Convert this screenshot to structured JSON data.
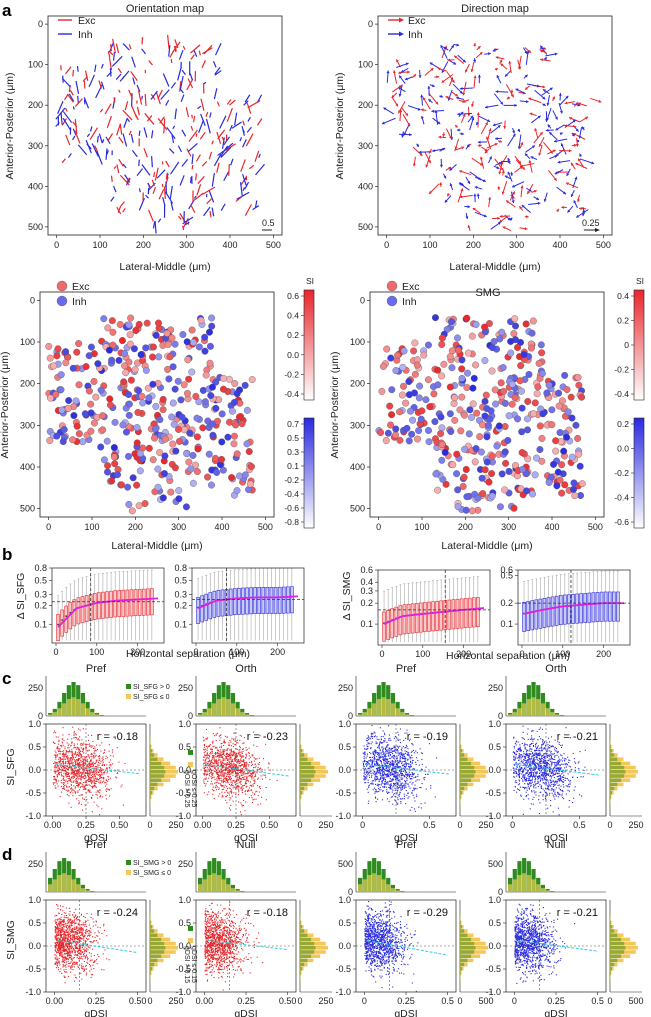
{
  "panel_letters": {
    "a": "a",
    "b": "b",
    "c": "c",
    "d": "d"
  },
  "panel_a": {
    "orientation_title": "Orientation map",
    "direction_title": "Direction map",
    "smg_title": "SMG",
    "legend_exc": "Exc",
    "legend_inh": "Inh",
    "scale_orientation": "0.5",
    "scale_direction": "0.25",
    "xlabel": "Lateral-Middle (μm)",
    "ylabel": "Anterior-Posterior (μm)",
    "x_ticks": [
      "0",
      "100",
      "200",
      "300",
      "400",
      "500"
    ],
    "y_ticks": [
      "0",
      "100",
      "200",
      "300",
      "400",
      "500"
    ],
    "si_label": "SI",
    "cbar_sfg_exc": [
      "0.6",
      "0.4",
      "0.2",
      "0.0",
      "-0.2",
      "-0.4"
    ],
    "cbar_sfg_inh": [
      "0.7",
      "0.5",
      "0.3",
      "0.1",
      "-0.2",
      "-0.4",
      "-0.6",
      "-0.8"
    ],
    "cbar_smg_exc": [
      "0.4",
      "0.2",
      "0",
      "-0.2",
      "-0.4"
    ],
    "cbar_smg_inh": [
      "0.2",
      "0.0",
      "-0.2",
      "-0.4",
      "-0.6"
    ],
    "colors": {
      "exc": "#e8262b",
      "inh": "#2a2adf"
    }
  },
  "panel_b": {
    "ylabel_sfg": "Δ SI_SFG",
    "ylabel_smg": "Δ SI_SMG",
    "xlabel": "Horizontal separation (μm)",
    "x_ticks": [
      "0",
      "100",
      "200"
    ],
    "y_ticks_sfg_exc": [
      "0.8",
      "0.5",
      "0.3",
      "0.2",
      "0.1"
    ],
    "y_ticks_sfg_inh": [
      "0.8",
      "0.5",
      "0.3",
      "0.2",
      "0.1"
    ],
    "y_ticks_smg_exc": [
      "0.6",
      "0.4",
      "0.3",
      "0.2",
      "0.1"
    ],
    "y_ticks_smg_inh": [
      "0.6",
      "0.5",
      "0.2",
      "0.1"
    ]
  },
  "panel_c": {
    "ylabel": "SI_SFG",
    "xlabel": "gOSI",
    "titles": [
      "Pref",
      "Orth",
      "Pref",
      "Orth"
    ],
    "r_values": [
      "r = -0.18",
      "r = -0.23",
      "r = -0.19",
      "r = -0.21"
    ],
    "legend_pos": "SI_SFG > 0",
    "legend_neg": "SI_SFG ≤ 0",
    "side_legend_a": "gOSI ≤ 0.25",
    "side_legend_b": "gOSI > 0.25",
    "x_ticks": [
      "0.00",
      "0.25",
      "0.50"
    ],
    "x_ticks_inh": [
      "0",
      "0.5"
    ],
    "y_ticks": [
      "1.0",
      "0.5",
      "0.0",
      "-0.5",
      "-1.0"
    ],
    "hist_ticks": [
      "0",
      "250"
    ],
    "top_hist_ticks": [
      "250",
      "0"
    ]
  },
  "panel_d": {
    "ylabel": "SI_SMG",
    "xlabel": "gDSI",
    "titles": [
      "Pref",
      "Null",
      "Pref",
      "Null"
    ],
    "r_values": [
      "r = -0.24",
      "r = -0.18",
      "r = -0.29",
      "r = -0.21"
    ],
    "legend_pos": "SI_SMG > 0",
    "legend_neg": "SI_SMG ≤ 0",
    "side_legend_a": "gDSI ≤ 0.15",
    "side_legend_b": "gDSI > 0.15",
    "x_ticks": [
      "0.00",
      "0.25",
      "0.50"
    ],
    "x_ticks_inh": [
      "0",
      "0.25",
      "0.5"
    ],
    "y_ticks": [
      "1.0",
      "0.5",
      "0.0",
      "-0.5",
      "-1.0"
    ],
    "hist_ticks_exc": [
      "0",
      "250"
    ],
    "hist_ticks_inh": [
      "0",
      "500"
    ],
    "top_hist_ticks_exc": [
      "250"
    ],
    "top_hist_ticks_inh": [
      "500",
      "0"
    ]
  },
  "chart_data": [
    {
      "type": "scatter",
      "title": "Orientation map",
      "xlabel": "Lateral-Middle (μm)",
      "ylabel": "Anterior-Posterior (μm)",
      "xlim": [
        -20,
        520
      ],
      "ylim": [
        520,
        -20
      ],
      "series": [
        {
          "name": "Exc"
        },
        {
          "name": "Inh"
        }
      ]
    },
    {
      "type": "scatter",
      "title": "Direction map",
      "xlabel": "Lateral-Middle (μm)",
      "ylabel": "Anterior-Posterior (μm)",
      "xlim": [
        -20,
        520
      ],
      "ylim": [
        520,
        -20
      ],
      "series": [
        {
          "name": "Exc"
        },
        {
          "name": "Inh"
        }
      ]
    },
    {
      "type": "line",
      "title": "Δ SI_SFG Exc",
      "x": [
        0,
        50,
        100,
        150,
        200,
        250
      ],
      "median": [
        0.09,
        0.18,
        0.22,
        0.24,
        0.25,
        0.26
      ],
      "ylim": [
        0.05,
        0.8
      ],
      "vline": 85,
      "hline": 0.23
    },
    {
      "type": "line",
      "title": "Δ SI_SFG Inh",
      "x": [
        0,
        50,
        100,
        150,
        200,
        250
      ],
      "median": [
        0.18,
        0.24,
        0.26,
        0.27,
        0.27,
        0.28
      ],
      "ylim": [
        0.05,
        0.8
      ],
      "vline": 75,
      "hline": 0.25
    },
    {
      "type": "line",
      "title": "Δ SI_SMG Exc",
      "x": [
        0,
        50,
        100,
        150,
        200,
        250
      ],
      "median": [
        0.1,
        0.13,
        0.14,
        0.15,
        0.16,
        0.17
      ],
      "ylim": [
        0.05,
        0.6
      ],
      "vline": 155,
      "hline": 0.16
    },
    {
      "type": "line",
      "title": "Δ SI_SMG Inh",
      "x": [
        0,
        50,
        100,
        150,
        200,
        250
      ],
      "median": [
        0.14,
        0.16,
        0.18,
        0.19,
        0.2,
        0.2
      ],
      "ylim": [
        0.05,
        0.6
      ],
      "vline": 120,
      "hline": 0.2
    },
    {
      "type": "scatter",
      "title": "Pref (c, Exc)",
      "xlabel": "gOSI",
      "ylabel": "SI_SFG",
      "r": -0.18,
      "xlim": [
        -0.05,
        0.75
      ],
      "ylim": [
        -1.0,
        1.0
      ]
    },
    {
      "type": "scatter",
      "title": "Orth (c, Exc)",
      "xlabel": "gOSI",
      "ylabel": "SI_SFG",
      "r": -0.23,
      "xlim": [
        -0.05,
        0.75
      ],
      "ylim": [
        -1.0,
        1.0
      ]
    },
    {
      "type": "scatter",
      "title": "Pref (c, Inh)",
      "xlabel": "gOSI",
      "ylabel": "SI_SFG",
      "r": -0.19,
      "xlim": [
        -0.05,
        0.75
      ],
      "ylim": [
        -1.0,
        1.0
      ]
    },
    {
      "type": "scatter",
      "title": "Orth (c, Inh)",
      "xlabel": "gOSI",
      "ylabel": "SI_SFG",
      "r": -0.21,
      "xlim": [
        -0.05,
        0.75
      ],
      "ylim": [
        -1.0,
        1.0
      ]
    },
    {
      "type": "scatter",
      "title": "Pref (d, Exc)",
      "xlabel": "gDSI",
      "ylabel": "SI_SMG",
      "r": -0.24,
      "xlim": [
        -0.05,
        0.6
      ],
      "ylim": [
        -1.0,
        1.0
      ]
    },
    {
      "type": "scatter",
      "title": "Null (d, Exc)",
      "xlabel": "gDSI",
      "ylabel": "SI_SMG",
      "r": -0.18,
      "xlim": [
        -0.05,
        0.6
      ],
      "ylim": [
        -1.0,
        1.0
      ]
    },
    {
      "type": "scatter",
      "title": "Pref (d, Inh)",
      "xlabel": "gDSI",
      "ylabel": "SI_SMG",
      "r": -0.29,
      "xlim": [
        -0.05,
        0.6
      ],
      "ylim": [
        -1.0,
        1.0
      ]
    },
    {
      "type": "scatter",
      "title": "Null (d, Inh)",
      "xlabel": "gDSI",
      "ylabel": "SI_SMG",
      "r": -0.21,
      "xlim": [
        -0.05,
        0.6
      ],
      "ylim": [
        -1.0,
        1.0
      ]
    }
  ]
}
